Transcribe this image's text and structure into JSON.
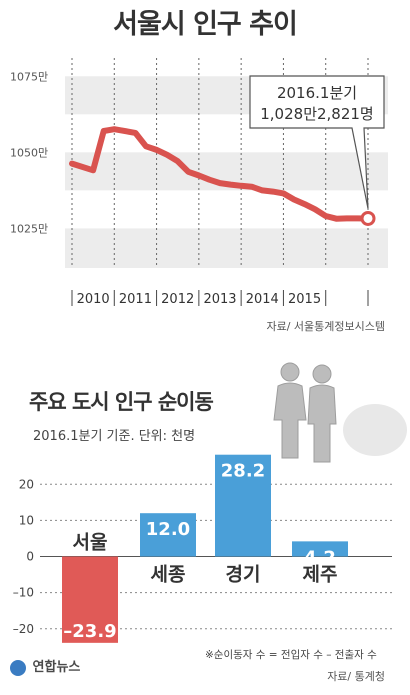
{
  "title": "서울시 인구 추이",
  "source1": "자료/ 서울통계정보시스템",
  "callout": {
    "line1": "2016.1분기",
    "line2": "1,028만2,821명"
  },
  "title2": "주요 도시 인구 순이동",
  "subtitle2": "2016.1분기 기준. 단위: 천명",
  "note": "※순이동자 수 = 전입자 수 – 전출자 수",
  "source2": "자료/ 통계청",
  "logo_text": "연합뉴스",
  "colors": {
    "line": "#d9534f",
    "bar_negative": "#e05a57",
    "bar_positive": "#4a9fd8",
    "band": "#ececec"
  },
  "chart_data": [
    {
      "type": "line",
      "title": "서울시 인구 추이",
      "x_labels": [
        "2010",
        "2011",
        "2012",
        "2013",
        "2014",
        "2015"
      ],
      "y_ticks": [
        1025,
        1050,
        1075
      ],
      "y_tick_labels": [
        "1025만",
        "1050만",
        "1075만"
      ],
      "ylim": [
        1012,
        1081
      ],
      "grid": "alternating horizontal bands",
      "series": [
        {
          "x": [
            2009.0,
            2009.5,
            2009.75,
            2010.0,
            2010.5,
            2010.75,
            2011.0,
            2011.25,
            2011.5,
            2011.75,
            2012.0,
            2012.25,
            2012.5,
            2012.75,
            2013.0,
            2013.25,
            2013.5,
            2013.75,
            2014.0,
            2014.25,
            2014.5,
            2014.75,
            2015.0,
            2015.25,
            2015.5,
            2015.75,
            2016.0
          ],
          "values": [
            1046.3,
            1044.1,
            1057.0,
            1057.6,
            1056.4,
            1052.0,
            1050.8,
            1049.2,
            1047.1,
            1043.6,
            1042.4,
            1041.0,
            1039.9,
            1039.4,
            1039.0,
            1038.7,
            1037.5,
            1037.1,
            1036.5,
            1034.5,
            1033.0,
            1031.3,
            1029.1,
            1028.2,
            1028.3,
            1028.3,
            1028.28
          ]
        }
      ],
      "annotation": {
        "text": "2016.1분기 1,028만2,821명",
        "x": 2016.0,
        "y": 1028.28
      }
    },
    {
      "type": "bar",
      "title": "주요 도시 인구 순이동",
      "categories": [
        "서울",
        "세종",
        "경기",
        "제주"
      ],
      "values": [
        -23.9,
        12.0,
        28.2,
        4.2
      ],
      "value_labels": [
        "–23.9",
        "12.0",
        "28.2",
        "4.2"
      ],
      "y_ticks": [
        20,
        10,
        0,
        -10,
        -20
      ],
      "y_tick_labels": [
        "20",
        "10",
        "0",
        "–10",
        "–20"
      ],
      "ylim": [
        -24.5,
        29.5
      ],
      "grid": "horizontal dashed lines"
    }
  ]
}
